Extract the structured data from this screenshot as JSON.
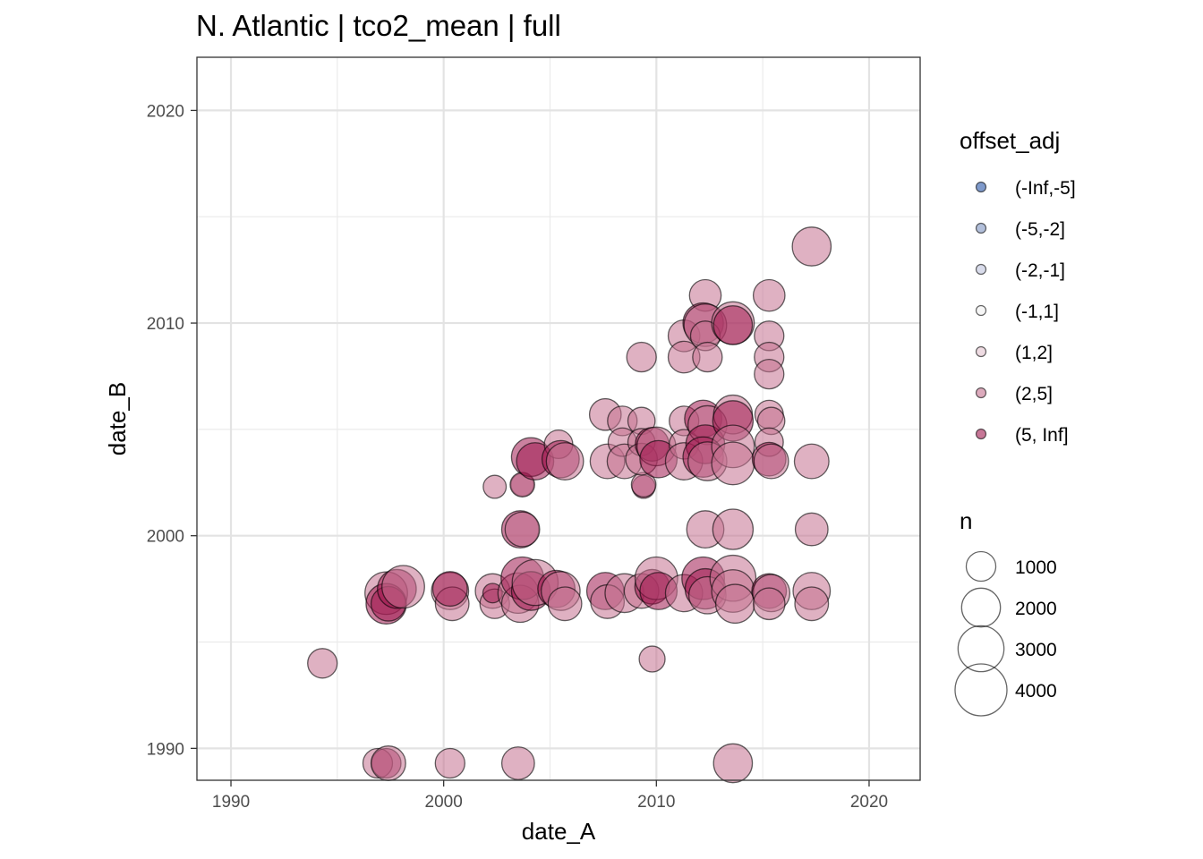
{
  "chart_data": {
    "type": "scatter",
    "title": "N. Atlantic | tco2_mean | full",
    "xlabel": "date_A",
    "ylabel": "date_B",
    "xlim": [
      1988.4,
      2022.4
    ],
    "ylim": [
      1988.5,
      2022.5
    ],
    "x_ticks": [
      1990,
      2000,
      2010,
      2020
    ],
    "y_ticks": [
      1990,
      2000,
      2010,
      2020
    ],
    "x_tick_labels": [
      "1990",
      "2000",
      "2010",
      "2020"
    ],
    "y_tick_labels": [
      "1990",
      "2000",
      "2010",
      "2020"
    ],
    "grid": true,
    "legend_position": "right",
    "color_legend": {
      "title": "offset_adj",
      "entries": [
        {
          "label": "(-Inf,-5]",
          "color": "#2a56a8"
        },
        {
          "label": "(-5,-2]",
          "color": "#7f95c2"
        },
        {
          "label": "(-2,-1]",
          "color": "#bfc5dd"
        },
        {
          "label": "(-1,1]",
          "color": "#f0f0f0"
        },
        {
          "label": "(1,2]",
          "color": "#e3c3cf"
        },
        {
          "label": "(2,5]",
          "color": "#c4718f"
        },
        {
          "label": "(5, Inf]",
          "color": "#a01a50"
        }
      ]
    },
    "size_legend": {
      "title": "n",
      "entries": [
        {
          "label": "1000",
          "value": 1000
        },
        {
          "label": "2000",
          "value": 2000
        },
        {
          "label": "3000",
          "value": 3000
        },
        {
          "label": "4000",
          "value": 4000
        }
      ]
    },
    "points": [
      {
        "x": 1994.3,
        "y": 1994.0,
        "n": 1000,
        "group": "(2,5]"
      },
      {
        "x": 1996.9,
        "y": 1989.3,
        "n": 1000,
        "group": "(2,5]"
      },
      {
        "x": 1997.3,
        "y": 1989.3,
        "n": 1000,
        "group": "(5, Inf]"
      },
      {
        "x": 1997.4,
        "y": 1989.3,
        "n": 1500,
        "group": "(2,5]"
      },
      {
        "x": 2000.3,
        "y": 1989.3,
        "n": 1000,
        "group": "(2,5]"
      },
      {
        "x": 2003.5,
        "y": 1989.3,
        "n": 1300,
        "group": "(2,5]"
      },
      {
        "x": 2013.6,
        "y": 1989.3,
        "n": 2000,
        "group": "(2,5]"
      },
      {
        "x": 2009.8,
        "y": 1994.2,
        "n": 700,
        "group": "(2,5]"
      },
      {
        "x": 1997.3,
        "y": 1997.3,
        "n": 2500,
        "group": "(2,5]"
      },
      {
        "x": 1997.3,
        "y": 1996.8,
        "n": 2200,
        "group": "(5, Inf]"
      },
      {
        "x": 1997.4,
        "y": 1996.8,
        "n": 1500,
        "group": "(5, Inf]"
      },
      {
        "x": 1997.8,
        "y": 1997.5,
        "n": 2000,
        "group": "(5, Inf]"
      },
      {
        "x": 1998.1,
        "y": 1997.6,
        "n": 2500,
        "group": "(2,5]"
      },
      {
        "x": 2000.3,
        "y": 1997.4,
        "n": 1800,
        "group": "(2,5]"
      },
      {
        "x": 2000.4,
        "y": 1996.8,
        "n": 1400,
        "group": "(2,5]"
      },
      {
        "x": 2000.3,
        "y": 1997.5,
        "n": 1500,
        "group": "(5, Inf]"
      },
      {
        "x": 2002.3,
        "y": 1997.4,
        "n": 1500,
        "group": "(2,5]"
      },
      {
        "x": 2002.4,
        "y": 1996.8,
        "n": 1000,
        "group": "(2,5]"
      },
      {
        "x": 2002.3,
        "y": 1997.3,
        "n": 300,
        "group": "(5, Inf]"
      },
      {
        "x": 2003.5,
        "y": 1997.3,
        "n": 2200,
        "group": "(2,5]"
      },
      {
        "x": 2003.6,
        "y": 1996.8,
        "n": 1800,
        "group": "(2,5]"
      },
      {
        "x": 2003.7,
        "y": 1998.0,
        "n": 2500,
        "group": "(5, Inf]"
      },
      {
        "x": 2004.1,
        "y": 1997.4,
        "n": 2000,
        "group": "(5, Inf]"
      },
      {
        "x": 2004.3,
        "y": 1997.8,
        "n": 3000,
        "group": "(2,5]"
      },
      {
        "x": 2005.3,
        "y": 1997.5,
        "n": 1800,
        "group": "(5, Inf]"
      },
      {
        "x": 2005.5,
        "y": 1997.4,
        "n": 2000,
        "group": "(2,5]"
      },
      {
        "x": 2005.7,
        "y": 1996.8,
        "n": 1400,
        "group": "(2,5]"
      },
      {
        "x": 2007.6,
        "y": 1997.4,
        "n": 1800,
        "group": "(5, Inf]"
      },
      {
        "x": 2007.7,
        "y": 1996.9,
        "n": 1400,
        "group": "(2,5]"
      },
      {
        "x": 2008.5,
        "y": 1997.3,
        "n": 2000,
        "group": "(2,5]"
      },
      {
        "x": 2009.3,
        "y": 1997.4,
        "n": 1500,
        "group": "(2,5]"
      },
      {
        "x": 2009.8,
        "y": 1997.6,
        "n": 1500,
        "group": "(5, Inf]"
      },
      {
        "x": 2010.0,
        "y": 1998.0,
        "n": 2500,
        "group": "(2,5]"
      },
      {
        "x": 2010.1,
        "y": 1997.4,
        "n": 1800,
        "group": "(5, Inf]"
      },
      {
        "x": 2011.3,
        "y": 1997.3,
        "n": 1800,
        "group": "(2,5]"
      },
      {
        "x": 2012.2,
        "y": 1998.0,
        "n": 2500,
        "group": "(5, Inf]"
      },
      {
        "x": 2012.3,
        "y": 1997.5,
        "n": 2200,
        "group": "(5, Inf]"
      },
      {
        "x": 2012.4,
        "y": 1997.2,
        "n": 1800,
        "group": "(2,5]"
      },
      {
        "x": 2013.6,
        "y": 1998.0,
        "n": 3000,
        "group": "(2,5]"
      },
      {
        "x": 2013.6,
        "y": 1997.4,
        "n": 2500,
        "group": "(2,5]"
      },
      {
        "x": 2013.7,
        "y": 1996.8,
        "n": 2000,
        "group": "(2,5]"
      },
      {
        "x": 2015.3,
        "y": 1997.4,
        "n": 1500,
        "group": "(5, Inf]"
      },
      {
        "x": 2015.4,
        "y": 1997.3,
        "n": 1800,
        "group": "(2,5]"
      },
      {
        "x": 2015.3,
        "y": 1996.8,
        "n": 1200,
        "group": "(2,5]"
      },
      {
        "x": 2017.3,
        "y": 1997.4,
        "n": 1800,
        "group": "(2,5]"
      },
      {
        "x": 2017.3,
        "y": 1996.8,
        "n": 1400,
        "group": "(2,5]"
      },
      {
        "x": 2003.6,
        "y": 2000.3,
        "n": 1800,
        "group": "(5, Inf]"
      },
      {
        "x": 2003.7,
        "y": 2000.3,
        "n": 1500,
        "group": "(2,5]"
      },
      {
        "x": 2012.3,
        "y": 2000.3,
        "n": 1800,
        "group": "(2,5]"
      },
      {
        "x": 2013.6,
        "y": 2000.3,
        "n": 2200,
        "group": "(2,5]"
      },
      {
        "x": 2017.3,
        "y": 2000.3,
        "n": 1300,
        "group": "(2,5]"
      },
      {
        "x": 2002.4,
        "y": 2002.3,
        "n": 500,
        "group": "(2,5]"
      },
      {
        "x": 2003.7,
        "y": 2002.4,
        "n": 500,
        "group": "(5, Inf]"
      },
      {
        "x": 2003.7,
        "y": 2002.4,
        "n": 600,
        "group": "(2,5]"
      },
      {
        "x": 2009.4,
        "y": 2002.3,
        "n": 500,
        "group": "(5, Inf]"
      },
      {
        "x": 2009.4,
        "y": 2002.4,
        "n": 600,
        "group": "(2,5]"
      },
      {
        "x": 2004.1,
        "y": 2003.7,
        "n": 2000,
        "group": "(5, Inf]"
      },
      {
        "x": 2004.3,
        "y": 2003.5,
        "n": 1800,
        "group": "(5, Inf]"
      },
      {
        "x": 2005.4,
        "y": 2004.3,
        "n": 900,
        "group": "(2,5]"
      },
      {
        "x": 2005.5,
        "y": 2003.6,
        "n": 1800,
        "group": "(5, Inf]"
      },
      {
        "x": 2005.7,
        "y": 2003.5,
        "n": 1800,
        "group": "(2,5]"
      },
      {
        "x": 2007.6,
        "y": 2005.7,
        "n": 1200,
        "group": "(2,5]"
      },
      {
        "x": 2007.7,
        "y": 2003.5,
        "n": 1500,
        "group": "(2,5]"
      },
      {
        "x": 2008.4,
        "y": 2005.4,
        "n": 1000,
        "group": "(2,5]"
      },
      {
        "x": 2008.4,
        "y": 2004.4,
        "n": 900,
        "group": "(2,5]"
      },
      {
        "x": 2008.5,
        "y": 2003.5,
        "n": 1500,
        "group": "(2,5]"
      },
      {
        "x": 2009.3,
        "y": 2008.4,
        "n": 1000,
        "group": "(2,5]"
      },
      {
        "x": 2009.3,
        "y": 2005.4,
        "n": 800,
        "group": "(2,5]"
      },
      {
        "x": 2009.3,
        "y": 2004.4,
        "n": 800,
        "group": "(2,5]"
      },
      {
        "x": 2009.3,
        "y": 2003.6,
        "n": 1200,
        "group": "(2,5]"
      },
      {
        "x": 2009.8,
        "y": 2004.3,
        "n": 1400,
        "group": "(5, Inf]"
      },
      {
        "x": 2010.0,
        "y": 2004.2,
        "n": 2000,
        "group": "(2,5]"
      },
      {
        "x": 2010.1,
        "y": 2003.6,
        "n": 1800,
        "group": "(5, Inf]"
      },
      {
        "x": 2011.3,
        "y": 2009.4,
        "n": 1200,
        "group": "(2,5]"
      },
      {
        "x": 2011.3,
        "y": 2008.4,
        "n": 1200,
        "group": "(2,5]"
      },
      {
        "x": 2011.3,
        "y": 2005.4,
        "n": 1000,
        "group": "(2,5]"
      },
      {
        "x": 2011.3,
        "y": 2004.3,
        "n": 1000,
        "group": "(2,5]"
      },
      {
        "x": 2011.3,
        "y": 2003.5,
        "n": 1800,
        "group": "(2,5]"
      },
      {
        "x": 2012.3,
        "y": 2011.3,
        "n": 1200,
        "group": "(2,5]"
      },
      {
        "x": 2012.2,
        "y": 2010.0,
        "n": 2200,
        "group": "(5, Inf]"
      },
      {
        "x": 2012.3,
        "y": 2009.9,
        "n": 2500,
        "group": "(2,5]"
      },
      {
        "x": 2012.3,
        "y": 2009.4,
        "n": 1000,
        "group": "(2,5]"
      },
      {
        "x": 2012.4,
        "y": 2008.4,
        "n": 1000,
        "group": "(2,5]"
      },
      {
        "x": 2012.2,
        "y": 2005.5,
        "n": 1800,
        "group": "(5, Inf]"
      },
      {
        "x": 2012.4,
        "y": 2005.2,
        "n": 2000,
        "group": "(2,5]"
      },
      {
        "x": 2012.3,
        "y": 2004.3,
        "n": 2000,
        "group": "(5, Inf]"
      },
      {
        "x": 2012.2,
        "y": 2003.7,
        "n": 2200,
        "group": "(5, Inf]"
      },
      {
        "x": 2012.4,
        "y": 2003.5,
        "n": 2000,
        "group": "(2,5]"
      },
      {
        "x": 2013.6,
        "y": 2010.0,
        "n": 2500,
        "group": "(2,5]"
      },
      {
        "x": 2013.6,
        "y": 2009.9,
        "n": 2000,
        "group": "(5, Inf]"
      },
      {
        "x": 2013.6,
        "y": 2005.7,
        "n": 2000,
        "group": "(2,5]"
      },
      {
        "x": 2013.6,
        "y": 2005.4,
        "n": 2200,
        "group": "(5, Inf]"
      },
      {
        "x": 2013.6,
        "y": 2004.2,
        "n": 2500,
        "group": "(2,5]"
      },
      {
        "x": 2013.6,
        "y": 2003.4,
        "n": 2500,
        "group": "(2,5]"
      },
      {
        "x": 2015.3,
        "y": 2011.3,
        "n": 1200,
        "group": "(2,5]"
      },
      {
        "x": 2015.3,
        "y": 2009.4,
        "n": 1000,
        "group": "(2,5]"
      },
      {
        "x": 2015.3,
        "y": 2008.4,
        "n": 1000,
        "group": "(2,5]"
      },
      {
        "x": 2015.3,
        "y": 2007.6,
        "n": 1000,
        "group": "(2,5]"
      },
      {
        "x": 2015.3,
        "y": 2005.7,
        "n": 900,
        "group": "(2,5]"
      },
      {
        "x": 2015.4,
        "y": 2005.4,
        "n": 800,
        "group": "(2,5]"
      },
      {
        "x": 2015.3,
        "y": 2004.4,
        "n": 900,
        "group": "(2,5]"
      },
      {
        "x": 2015.3,
        "y": 2003.6,
        "n": 1400,
        "group": "(5, Inf]"
      },
      {
        "x": 2015.4,
        "y": 2003.5,
        "n": 1500,
        "group": "(2,5]"
      },
      {
        "x": 2017.3,
        "y": 2013.6,
        "n": 2000,
        "group": "(2,5]"
      },
      {
        "x": 2017.3,
        "y": 2003.5,
        "n": 1500,
        "group": "(2,5]"
      }
    ]
  }
}
